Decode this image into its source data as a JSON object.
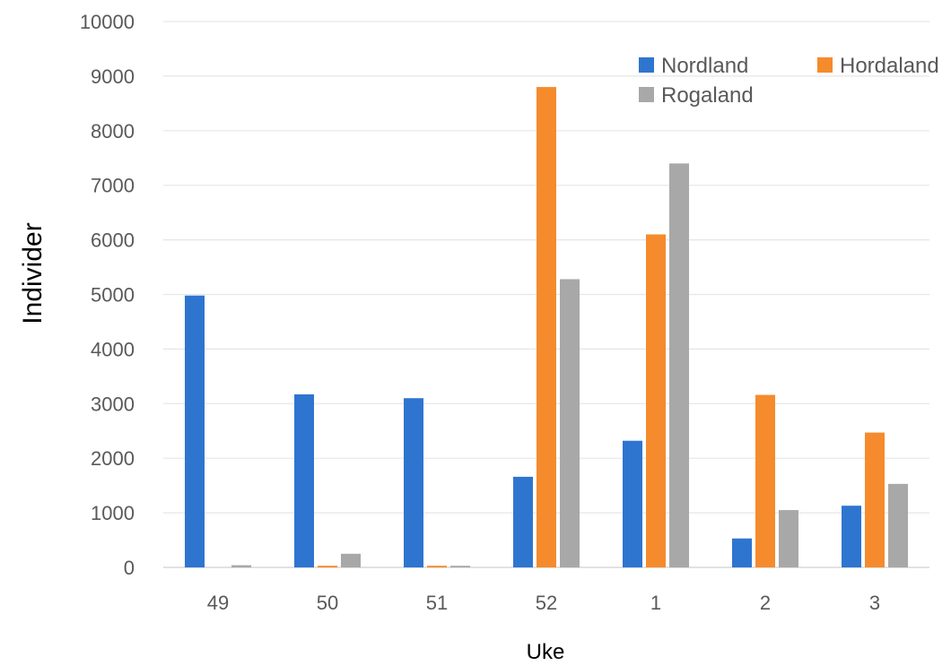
{
  "chart_data": {
    "type": "bar",
    "title": "",
    "xlabel": "Uke",
    "ylabel": "Individer",
    "categories": [
      "49",
      "50",
      "51",
      "52",
      "1",
      "2",
      "3"
    ],
    "ylim": [
      0,
      10000
    ],
    "yticks": [
      0,
      1000,
      2000,
      3000,
      4000,
      5000,
      6000,
      7000,
      8000,
      9000,
      10000
    ],
    "grid": true,
    "legend_position": "top-right",
    "series": [
      {
        "name": "Nordland",
        "color": "#2E75D0",
        "values": [
          4980,
          3170,
          3100,
          1660,
          2320,
          530,
          1130
        ]
      },
      {
        "name": "Hordaland",
        "color": "#F58B2C",
        "values": [
          0,
          30,
          30,
          8800,
          6100,
          3160,
          2470
        ]
      },
      {
        "name": "Rogaland",
        "color": "#A8A8A8",
        "values": [
          40,
          250,
          30,
          5280,
          7400,
          1050,
          1530
        ]
      }
    ]
  }
}
